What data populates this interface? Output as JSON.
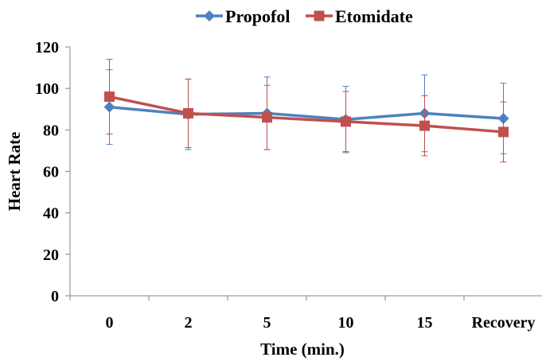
{
  "chart_data": {
    "type": "line",
    "title": "",
    "xlabel": "Time (min.)",
    "ylabel": "Heart Rate",
    "categories": [
      "0",
      "2",
      "5",
      "10",
      "15",
      "Recovery"
    ],
    "ylim": [
      0,
      120
    ],
    "yticks": [
      0,
      20,
      40,
      60,
      80,
      100,
      120
    ],
    "grid": false,
    "legend_position": "top",
    "series": [
      {
        "name": "Propofol",
        "color": "#4F81BD",
        "marker": "diamond",
        "values": [
          91,
          87.5,
          88,
          85,
          88,
          85.5
        ],
        "error": [
          18,
          17,
          17.5,
          16,
          18.5,
          17
        ]
      },
      {
        "name": "Etomidate",
        "color": "#C0504D",
        "marker": "square",
        "values": [
          96,
          88,
          86,
          84,
          82,
          79
        ],
        "error": [
          18,
          16.5,
          15.5,
          14.5,
          14.5,
          14.5
        ]
      }
    ]
  }
}
